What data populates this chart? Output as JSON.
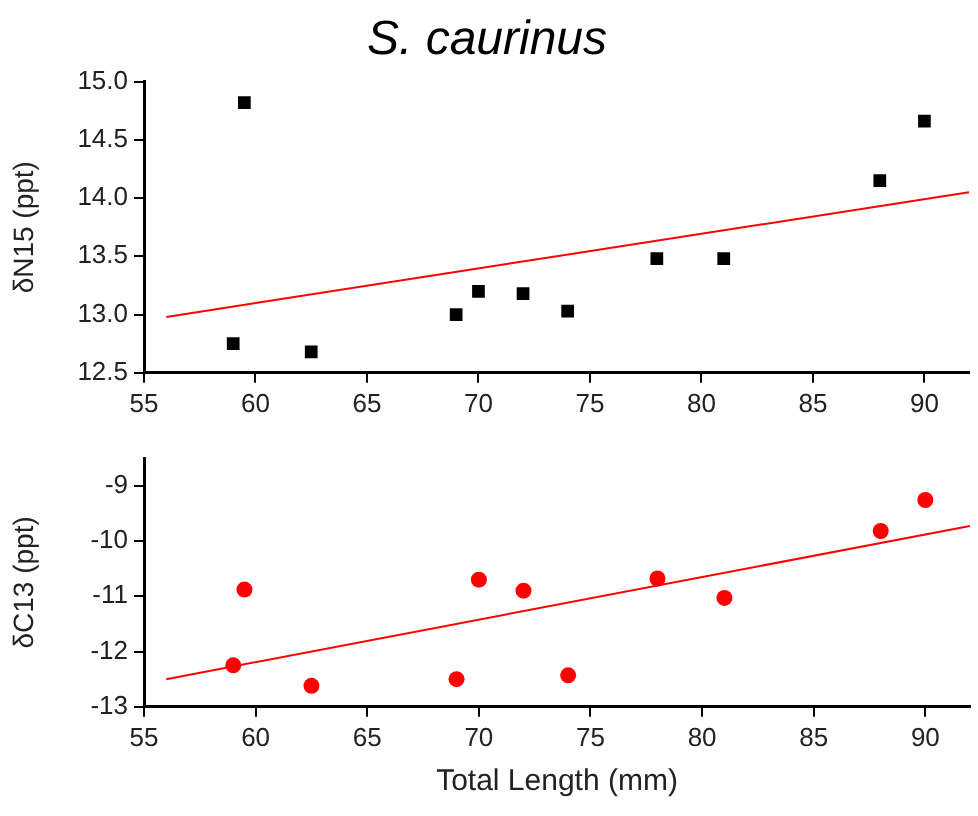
{
  "chart_data": [
    {
      "type": "scatter",
      "title": "S. caurinus",
      "ylabel": "δN15 (ppt)",
      "xlim": [
        55,
        92
      ],
      "xticks": [
        55,
        60,
        65,
        70,
        75,
        80,
        85,
        90
      ],
      "ylim": [
        12.5,
        15
      ],
      "yticks": [
        {
          "value": 12.5,
          "label": "12.5"
        },
        {
          "value": 13,
          "label": "13.0"
        },
        {
          "value": 13.5,
          "label": "13.5"
        },
        {
          "value": 14,
          "label": "14.0"
        },
        {
          "value": 14.5,
          "label": "14.5"
        },
        {
          "value": 15,
          "label": "15.0"
        }
      ],
      "grid": false,
      "legend": false,
      "series": [
        {
          "type": "scatter",
          "color": "#000000",
          "marker": "square",
          "x": [
            59,
            59.5,
            62.5,
            69,
            70,
            72,
            74,
            78,
            81,
            88,
            90
          ],
          "values": [
            12.75,
            14.82,
            12.68,
            13.0,
            13.2,
            13.18,
            13.03,
            13.48,
            13.48,
            14.15,
            14.66
          ]
        },
        {
          "type": "line",
          "color": "#ff0000",
          "marker": "none",
          "x": [
            56,
            92
          ],
          "values": [
            12.98,
            14.05
          ]
        }
      ]
    },
    {
      "type": "scatter",
      "xlabel": "Total Length (mm)",
      "ylabel": "δC13 (ppt)",
      "xlim": [
        55,
        92
      ],
      "xticks": [
        55,
        60,
        65,
        70,
        75,
        80,
        85,
        90
      ],
      "ylim": [
        -13,
        -8.5
      ],
      "yticks": [
        -13,
        -12,
        -11,
        -10,
        -9
      ],
      "grid": false,
      "legend": false,
      "series": [
        {
          "type": "scatter",
          "color": "#ff0000",
          "marker": "circle",
          "x": [
            59,
            59.5,
            62.5,
            69,
            70,
            72,
            74,
            78,
            81,
            88,
            90
          ],
          "values": [
            -12.25,
            -10.88,
            -12.62,
            -12.5,
            -10.7,
            -10.9,
            -12.43,
            -10.68,
            -11.03,
            -9.82,
            -9.26
          ]
        },
        {
          "type": "line",
          "color": "#ff0000",
          "marker": "none",
          "x": [
            56,
            92
          ],
          "values": [
            -12.5,
            -9.73
          ]
        }
      ]
    }
  ]
}
